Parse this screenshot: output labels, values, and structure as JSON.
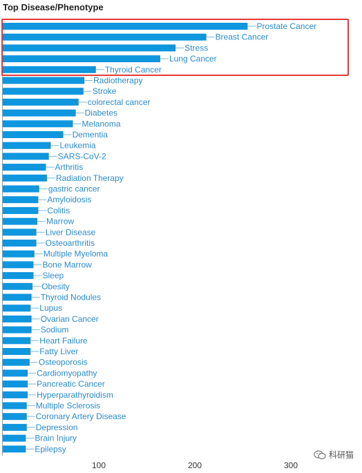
{
  "chart_data": {
    "type": "bar",
    "orientation": "horizontal",
    "title": "Top Disease/Phenotype",
    "xlabel": "",
    "ylabel": "",
    "xlim": [
      0,
      350
    ],
    "x_ticks": [
      100,
      200,
      300
    ],
    "grid": false,
    "bar_color": "#0e96df",
    "label_color": "#2a8bd0",
    "categories": [
      "Prostate Cancer",
      "Breast Cancer",
      "Stress",
      "Lung Cancer",
      "Thyroid Cancer",
      "Radiotherapy",
      "Stroke",
      "colorectal cancer",
      "Diabetes",
      "Melanoma",
      "Dementia",
      "Leukemia",
      "SARS-CoV-2",
      "Arthritis",
      "Radiation Therapy",
      "gastric cancer",
      "Amyloidosis",
      "Colitis",
      "Marrow",
      "Liver Disease",
      "Osteoarthritis",
      "Multiple Myeloma",
      "Bone Marrow",
      "Sleep",
      "Obesity",
      "Thyroid Nodules",
      "Lupus",
      "Ovarian Cancer",
      "Sodium",
      "Heart Failure",
      "Fatty Liver",
      "Osteoporosis",
      "Cardiomyopathy",
      "Pancreatic Cancer",
      "Hyperparathyroidism",
      "Multiple Sclerosis",
      "Coronary Artery Disease",
      "Depression",
      "Brain Injury",
      "Epilepsy"
    ],
    "values": [
      255,
      212,
      180,
      164,
      97,
      85,
      84,
      79,
      76,
      73,
      63,
      50,
      48,
      45,
      46,
      38,
      37,
      37,
      36,
      35,
      35,
      33,
      32,
      32,
      31,
      30,
      29,
      30,
      30,
      29,
      29,
      28,
      26,
      26,
      26,
      25,
      25,
      25,
      24,
      24
    ],
    "highlighted_categories": [
      "Prostate Cancer",
      "Breast Cancer",
      "Stress",
      "Lung Cancer",
      "Thyroid Cancer"
    ],
    "highlight_color": "#e53935"
  },
  "watermark": {
    "text": "科研猫",
    "icon": "wechat-icon"
  }
}
